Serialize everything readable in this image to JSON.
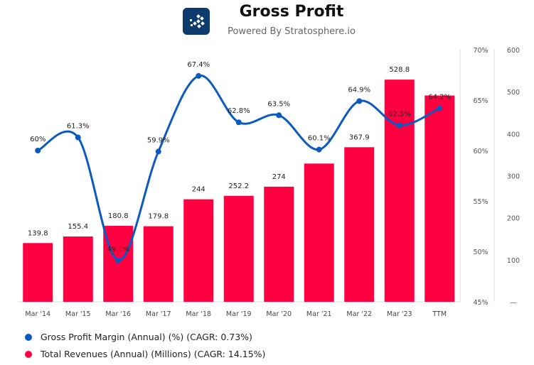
{
  "header": {
    "title": "Gross Profit",
    "subtitle": "Powered By Stratosphere.io"
  },
  "colors": {
    "margin": "#0a5ac2",
    "revenue": "#ff0040"
  },
  "chart_data": {
    "type": "bar+line",
    "title": "Gross Profit",
    "categories": [
      "Mar '14",
      "Mar '15",
      "Mar '16",
      "Mar '17",
      "Mar '18",
      "Mar '19",
      "Mar '20",
      "Mar '21",
      "Mar '22",
      "Mar '23",
      "TTM"
    ],
    "series": [
      {
        "name": "Gross Profit Margin (Annual) (%) (CAGR: 0.73%)",
        "type": "line",
        "axis": "left",
        "values": [
          60,
          61.3,
          49.1,
          59.9,
          67.4,
          62.8,
          63.5,
          60.1,
          64.9,
          62.5,
          64.2
        ],
        "labels": [
          "60%",
          "61.3%",
          "49.1%",
          "59.9%",
          "67.4%",
          "62.8%",
          "63.5%",
          "60.1%",
          "64.9%",
          "62.5%",
          "64.2%"
        ]
      },
      {
        "name": "Total Revenues (Annual) (Millions) (CAGR: 14.15%)",
        "type": "bar",
        "axis": "right",
        "values": [
          139.8,
          155.4,
          180.8,
          179.8,
          244,
          252.2,
          274,
          329,
          367.9,
          528.8,
          491
        ],
        "labels": [
          "139.8",
          "155.4",
          "180.8",
          "179.8",
          "244",
          "252.2",
          "274",
          "",
          "367.9",
          "528.8",
          ""
        ]
      }
    ],
    "left_axis": {
      "range": [
        45,
        70
      ],
      "ticks": [
        "45%",
        "50%",
        "55%",
        "60%",
        "65%",
        "70%"
      ]
    },
    "right_axis": {
      "range": [
        0,
        600
      ],
      "ticks": [
        "—",
        "100",
        "200",
        "300",
        "400",
        "500",
        "600"
      ]
    },
    "legend": "bottom-left"
  }
}
